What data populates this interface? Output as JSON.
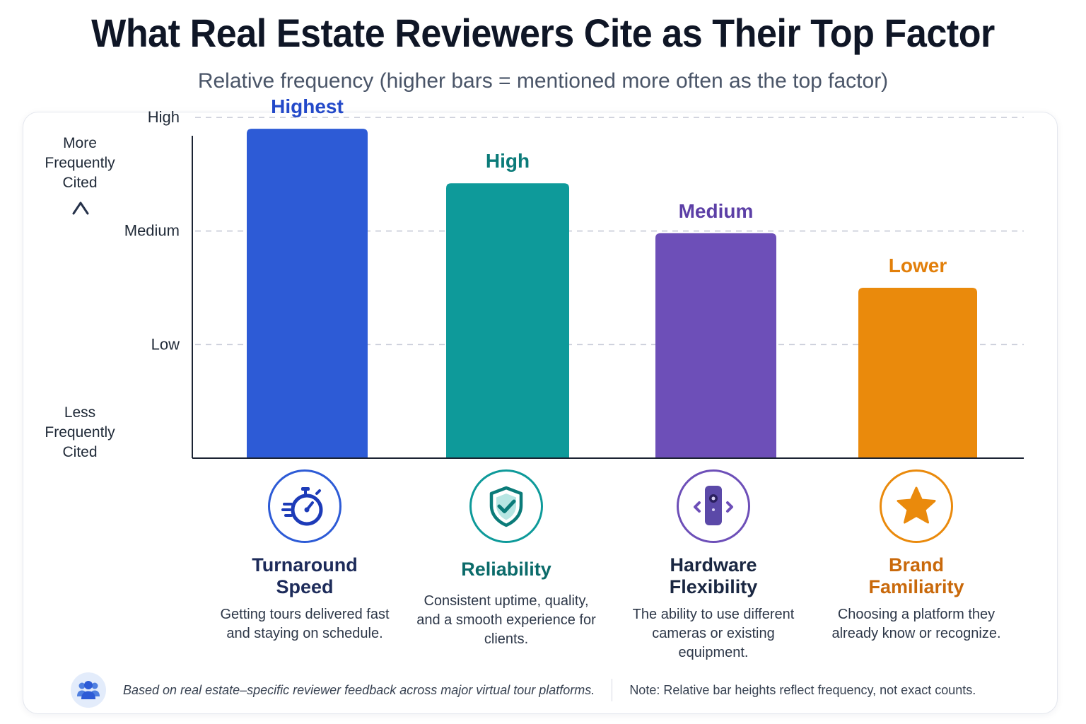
{
  "title": "What Real Estate Reviewers Cite as Their Top Factor",
  "subtitle": "Relative frequency (higher bars = mentioned more often as the top factor)",
  "y_axis": {
    "top_caption": [
      "More",
      "Frequently",
      "Cited"
    ],
    "bottom_caption": [
      "Less",
      "Frequently",
      "Cited"
    ]
  },
  "chart_data": {
    "type": "bar",
    "categories": [
      "Turnaround Speed",
      "Reliability",
      "Hardware Flexibility",
      "Brand Familiarity"
    ],
    "values": [
      2.9,
      2.42,
      1.98,
      1.5
    ],
    "data_labels": [
      "Highest",
      "High",
      "Medium",
      "Lower"
    ],
    "colors": [
      "#2d5bd6",
      "#0e9a9a",
      "#6d4fb8",
      "#ea8a0c"
    ],
    "yticks": [
      {
        "value": 1,
        "label": "Low"
      },
      {
        "value": 2,
        "label": "Medium"
      },
      {
        "value": 3,
        "label": "High"
      }
    ],
    "ylim": [
      0,
      3.1
    ],
    "grid": true,
    "xlabel": "",
    "ylabel": ""
  },
  "factors": [
    {
      "name_lines": [
        "Turnaround",
        "Speed"
      ],
      "desc": "Getting tours delivered fast and staying on schedule.",
      "icon": "stopwatch-icon",
      "color": "#1d3bb8"
    },
    {
      "name_lines": [
        "Reliability"
      ],
      "desc": "Consistent uptime, quality, and a smooth experience for clients.",
      "icon": "shield-check-icon",
      "color": "#0b7b79"
    },
    {
      "name_lines": [
        "Hardware",
        "Flexibility"
      ],
      "desc": "The ability to use different cameras or existing equipment.",
      "icon": "camera-device-icon",
      "color": "#1a2742"
    },
    {
      "name_lines": [
        "Brand",
        "Familiarity"
      ],
      "desc": "Choosing a platform they already know or recognize.",
      "icon": "star-icon",
      "color": "#c9690b"
    }
  ],
  "footer": {
    "source": "Based on real estate–specific reviewer feedback across major virtual tour platforms.",
    "note": "Note: Relative bar heights reflect frequency, not exact counts.",
    "icon": "users-icon"
  }
}
